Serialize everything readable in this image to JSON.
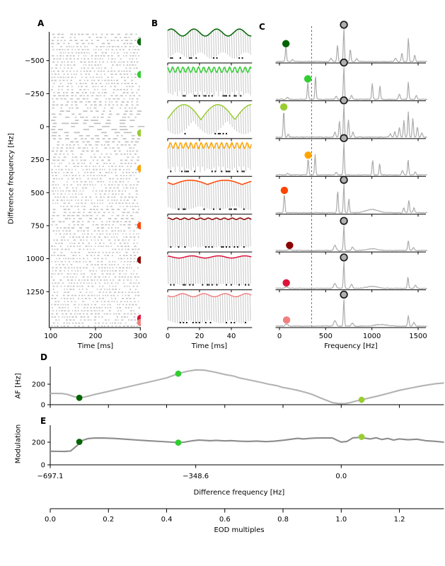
{
  "styles": {
    "raster_color": "#c3c3c3",
    "carrier_color": "#c9c9c9",
    "spectrum_color": "#ababab",
    "d_curve_color": "#b3b3b3",
    "e_curve_color": "#8c8c8c",
    "eod_marker_fill": "#b0b0b0",
    "eod_marker_edge": "#1a1a1a",
    "spike_color": "#111111",
    "axis_color": "#000000",
    "dashed_line_color": "#555555"
  },
  "row_colors": [
    "#006400",
    "#32cd32",
    "#9acd32",
    "#ffa500",
    "#ff4500",
    "#8b0000",
    "#dc143c",
    "#f08080"
  ],
  "chart_data": [
    {
      "panel": "A",
      "type": "scatter",
      "description": "spike raster of ~96 trials sorted by difference frequency",
      "xlabel": "Time [ms]",
      "ylabel": "Difference frequency [Hz]",
      "xlim": [
        100,
        300
      ],
      "xticks": [
        100,
        200,
        300
      ],
      "xtick_labels": [
        "100",
        "200",
        "300"
      ],
      "ylim": [
        -700,
        1530
      ],
      "yticks": [
        -500,
        -250,
        0,
        250,
        500,
        750,
        1000,
        1250
      ],
      "ytick_labels": [
        "−500",
        "−250",
        "0",
        "250",
        "500",
        "750",
        "1000",
        "1250"
      ],
      "n_rows": 96,
      "seed": 11,
      "marker_dfreqs": [
        -643,
        -395,
        48,
        316,
        750,
        1010,
        1452,
        1484
      ]
    },
    {
      "panel": "B",
      "type": "line",
      "description": "stimulus waveforms (gray carrier at EOD frequency) with colored amplitude envelope and spike times below",
      "xlabel": "Time [ms]",
      "xlim": [
        0,
        53
      ],
      "xticks": [
        0,
        20,
        40
      ],
      "xtick_labels": [
        "0",
        "20",
        "40"
      ],
      "carrier_hz": 697.1,
      "rows": [
        {
          "color": "#006400",
          "am_hz": 70,
          "env": "sin",
          "env_min": 0.55,
          "env_max": 1.0
        },
        {
          "color": "#32cd32",
          "am_hz": 307,
          "env": "sin",
          "env_min": 0.62,
          "env_max": 1.0
        },
        {
          "color": "#9acd32",
          "am_hz": 47,
          "env": "abs-sin",
          "env_min": 0.03,
          "env_max": 1.0
        },
        {
          "color": "#ffa500",
          "am_hz": 311,
          "env": "sin",
          "env_min": 0.6,
          "env_max": 1.0
        },
        {
          "color": "#ff4500",
          "am_hz": 46,
          "env": "abs-sin",
          "env_min": 0.72,
          "env_max": 1.0
        },
        {
          "color": "#8b0000",
          "am_hz": 200,
          "env": "sin",
          "env_min": 0.9,
          "env_max": 1.0
        },
        {
          "color": "#dc143c",
          "am_hz": 60,
          "env": "sin",
          "env_min": 0.86,
          "env_max": 1.0
        },
        {
          "color": "#f08080",
          "am_hz": 75,
          "env": "sin",
          "env_min": 0.8,
          "env_max": 1.0
        }
      ]
    },
    {
      "panel": "C",
      "type": "line",
      "description": "power spectra per stimulus; colored dot = amplitude-modulation peak, circled gray dot = EOD peak, dashed line at half EOD frequency",
      "xlabel": "Frequency [Hz]",
      "xlim": [
        -40,
        1600
      ],
      "xticks": [
        0,
        500,
        1000,
        1500
      ],
      "xtick_labels": [
        "0",
        "500",
        "1000",
        "1500"
      ],
      "dashed_line_hz": 348.6,
      "eod_marker_hz": 697.1,
      "rows": [
        {
          "color": "#006400",
          "af_peak": [
            70,
            0.44
          ],
          "peaks": [
            [
              70,
              0.44,
              9
            ],
            [
              140,
              0.06,
              12
            ],
            [
              558,
              0.1,
              14
            ],
            [
              628,
              0.5,
              9
            ],
            [
              697,
              1.0,
              8
            ],
            [
              767,
              0.38,
              9
            ],
            [
              837,
              0.08,
              14
            ],
            [
              1255,
              0.1,
              14
            ],
            [
              1325,
              0.26,
              10
            ],
            [
              1395,
              0.72,
              9
            ],
            [
              1464,
              0.2,
              10
            ]
          ]
        },
        {
          "color": "#32cd32",
          "af_peak": [
            307,
            0.52
          ],
          "peaks": [
            [
              87,
              0.06,
              14
            ],
            [
              307,
              0.52,
              9
            ],
            [
              390,
              0.72,
              9
            ],
            [
              614,
              0.1,
              12
            ],
            [
              697,
              1.0,
              8
            ],
            [
              780,
              0.12,
              12
            ],
            [
              1004,
              0.48,
              9
            ],
            [
              1087,
              0.42,
              9
            ],
            [
              1297,
              0.16,
              12
            ],
            [
              1394,
              0.52,
              9
            ],
            [
              1480,
              0.12,
              12
            ]
          ]
        },
        {
          "color": "#9acd32",
          "af_peak": [
            47,
            0.82
          ],
          "peaks": [
            [
              47,
              0.82,
              9
            ],
            [
              95,
              0.1,
              10
            ],
            [
              600,
              0.16,
              12
            ],
            [
              649,
              0.5,
              9
            ],
            [
              697,
              1.0,
              8
            ],
            [
              746,
              0.52,
              9
            ],
            [
              795,
              0.16,
              11
            ],
            [
              1200,
              0.1,
              12
            ],
            [
              1248,
              0.18,
              10
            ],
            [
              1297,
              0.3,
              10
            ],
            [
              1346,
              0.52,
              9
            ],
            [
              1394,
              0.78,
              9
            ],
            [
              1443,
              0.58,
              9
            ],
            [
              1492,
              0.32,
              10
            ],
            [
              1540,
              0.14,
              12
            ]
          ]
        },
        {
          "color": "#ffa500",
          "af_peak": [
            311,
            0.5
          ],
          "peaks": [
            [
              90,
              0.05,
              14
            ],
            [
              311,
              0.5,
              9
            ],
            [
              386,
              0.62,
              9
            ],
            [
              614,
              0.08,
              12
            ],
            [
              697,
              1.0,
              8
            ],
            [
              1008,
              0.46,
              9
            ],
            [
              1084,
              0.34,
              9
            ],
            [
              1330,
              0.14,
              12
            ],
            [
              1392,
              0.48,
              9
            ],
            [
              1470,
              0.1,
              12
            ]
          ]
        },
        {
          "color": "#ff4500",
          "af_peak": [
            53,
            0.58
          ],
          "peaks": [
            [
              53,
              0.58,
              9
            ],
            [
              630,
              0.68,
              9
            ],
            [
              697,
              0.88,
              8
            ],
            [
              751,
              0.42,
              9
            ],
            [
              1000,
              0.1,
              90
            ],
            [
              1345,
              0.14,
              11
            ],
            [
              1400,
              0.38,
              10
            ],
            [
              1455,
              0.16,
              11
            ]
          ]
        },
        {
          "color": "#8b0000",
          "af_peak": [
            110,
            0.05
          ],
          "peaks": [
            [
              110,
              0.04,
              20
            ],
            [
              600,
              0.16,
              18
            ],
            [
              697,
              0.78,
              8
            ],
            [
              790,
              0.1,
              16
            ],
            [
              1000,
              0.05,
              80
            ],
            [
              1394,
              0.3,
              10
            ],
            [
              1450,
              0.08,
              14
            ]
          ]
        },
        {
          "color": "#dc143c",
          "af_peak": [
            74,
            0.06
          ],
          "peaks": [
            [
              74,
              0.05,
              20
            ],
            [
              600,
              0.15,
              18
            ],
            [
              697,
              0.82,
              8
            ],
            [
              780,
              0.12,
              16
            ],
            [
              1000,
              0.06,
              80
            ],
            [
              1390,
              0.34,
              10
            ],
            [
              1470,
              0.1,
              14
            ]
          ]
        },
        {
          "color": "#f08080",
          "af_peak": [
            77,
            0.08
          ],
          "peaks": [
            [
              77,
              0.07,
              20
            ],
            [
              600,
              0.17,
              18
            ],
            [
              697,
              0.84,
              8
            ],
            [
              790,
              0.1,
              16
            ],
            [
              1100,
              0.05,
              90
            ],
            [
              1394,
              0.32,
              10
            ],
            [
              1455,
              0.12,
              14
            ]
          ]
        }
      ]
    },
    {
      "panel": "D",
      "type": "line",
      "ylabel": "AF [Hz]",
      "ylim": [
        0,
        372
      ],
      "yticks": [
        0,
        200
      ],
      "ytick_labels": [
        "0",
        "200"
      ],
      "xlim": [
        0,
        1.353
      ],
      "x_axis": "EOD multiples",
      "curve": [
        [
          0,
          110
        ],
        [
          0.04,
          109
        ],
        [
          0.06,
          100
        ],
        [
          0.08,
          80
        ],
        [
          0.1,
          67
        ],
        [
          0.12,
          76
        ],
        [
          0.15,
          98
        ],
        [
          0.2,
          130
        ],
        [
          0.25,
          163
        ],
        [
          0.3,
          196
        ],
        [
          0.35,
          228
        ],
        [
          0.4,
          262
        ],
        [
          0.44,
          303
        ],
        [
          0.47,
          325
        ],
        [
          0.5,
          340
        ],
        [
          0.53,
          337
        ],
        [
          0.57,
          315
        ],
        [
          0.6,
          295
        ],
        [
          0.63,
          280
        ],
        [
          0.65,
          262
        ],
        [
          0.7,
          232
        ],
        [
          0.73,
          214
        ],
        [
          0.75,
          200
        ],
        [
          0.78,
          185
        ],
        [
          0.8,
          168
        ],
        [
          0.82,
          158
        ],
        [
          0.85,
          140
        ],
        [
          0.88,
          118
        ],
        [
          0.9,
          100
        ],
        [
          0.93,
          65
        ],
        [
          0.95,
          42
        ],
        [
          0.97,
          20
        ],
        [
          0.99,
          12
        ],
        [
          1.01,
          10
        ],
        [
          1.03,
          20
        ],
        [
          1.05,
          35
        ],
        [
          1.07,
          48
        ],
        [
          1.1,
          68
        ],
        [
          1.13,
          88
        ],
        [
          1.16,
          110
        ],
        [
          1.2,
          140
        ],
        [
          1.24,
          163
        ],
        [
          1.28,
          185
        ],
        [
          1.32,
          203
        ],
        [
          1.353,
          212
        ]
      ],
      "dots": [
        {
          "color": "#006400",
          "x": 0.1,
          "y": 67
        },
        {
          "color": "#32cd32",
          "x": 0.44,
          "y": 303
        },
        {
          "color": "#9acd32",
          "x": 1.07,
          "y": 48
        }
      ]
    },
    {
      "panel": "E",
      "type": "line",
      "ylabel": "Modulation",
      "xlabel": "Difference frequency [Hz]",
      "ylim": [
        0,
        350
      ],
      "yticks": [
        0,
        200
      ],
      "ytick_labels": [
        "0",
        "200"
      ],
      "xlim": [
        0,
        1.353
      ],
      "xticks": [
        0,
        0.5,
        1.0
      ],
      "xtick_labels": [
        "−697.1",
        "−348.6",
        "0.0"
      ],
      "curve": [
        [
          0,
          120
        ],
        [
          0.03,
          119
        ],
        [
          0.05,
          118
        ],
        [
          0.07,
          122
        ],
        [
          0.09,
          165
        ],
        [
          0.11,
          215
        ],
        [
          0.13,
          232
        ],
        [
          0.15,
          236
        ],
        [
          0.18,
          237
        ],
        [
          0.22,
          233
        ],
        [
          0.26,
          226
        ],
        [
          0.3,
          219
        ],
        [
          0.34,
          212
        ],
        [
          0.38,
          206
        ],
        [
          0.42,
          200
        ],
        [
          0.44,
          196
        ],
        [
          0.46,
          200
        ],
        [
          0.49,
          213
        ],
        [
          0.51,
          219
        ],
        [
          0.53,
          216
        ],
        [
          0.55,
          213
        ],
        [
          0.57,
          216
        ],
        [
          0.6,
          211
        ],
        [
          0.62,
          214
        ],
        [
          0.65,
          209
        ],
        [
          0.68,
          207
        ],
        [
          0.71,
          210
        ],
        [
          0.74,
          205
        ],
        [
          0.77,
          209
        ],
        [
          0.8,
          217
        ],
        [
          0.83,
          227
        ],
        [
          0.85,
          234
        ],
        [
          0.87,
          229
        ],
        [
          0.89,
          233
        ],
        [
          0.91,
          236
        ],
        [
          0.94,
          238
        ],
        [
          0.97,
          237
        ],
        [
          0.985,
          218
        ],
        [
          1.0,
          201
        ],
        [
          1.02,
          207
        ],
        [
          1.04,
          238
        ],
        [
          1.06,
          242
        ],
        [
          1.08,
          236
        ],
        [
          1.1,
          229
        ],
        [
          1.12,
          239
        ],
        [
          1.14,
          224
        ],
        [
          1.16,
          234
        ],
        [
          1.18,
          219
        ],
        [
          1.2,
          229
        ],
        [
          1.23,
          221
        ],
        [
          1.26,
          226
        ],
        [
          1.29,
          213
        ],
        [
          1.32,
          208
        ],
        [
          1.353,
          200
        ]
      ],
      "dots": [
        {
          "color": "#006400",
          "x": 0.1,
          "y": 203
        },
        {
          "color": "#32cd32",
          "x": 0.44,
          "y": 196
        },
        {
          "color": "#9acd32",
          "x": 1.07,
          "y": 247
        }
      ]
    },
    {
      "panel": "x-axis",
      "type": "axis",
      "label": "EOD multiples",
      "xlim": [
        0,
        1.353
      ],
      "ticks": [
        0,
        0.2,
        0.4,
        0.6,
        0.8,
        1.0,
        1.2
      ],
      "tick_labels": [
        "0.0",
        "0.2",
        "0.4",
        "0.6",
        "0.8",
        "1.0",
        "1.2"
      ]
    }
  ]
}
